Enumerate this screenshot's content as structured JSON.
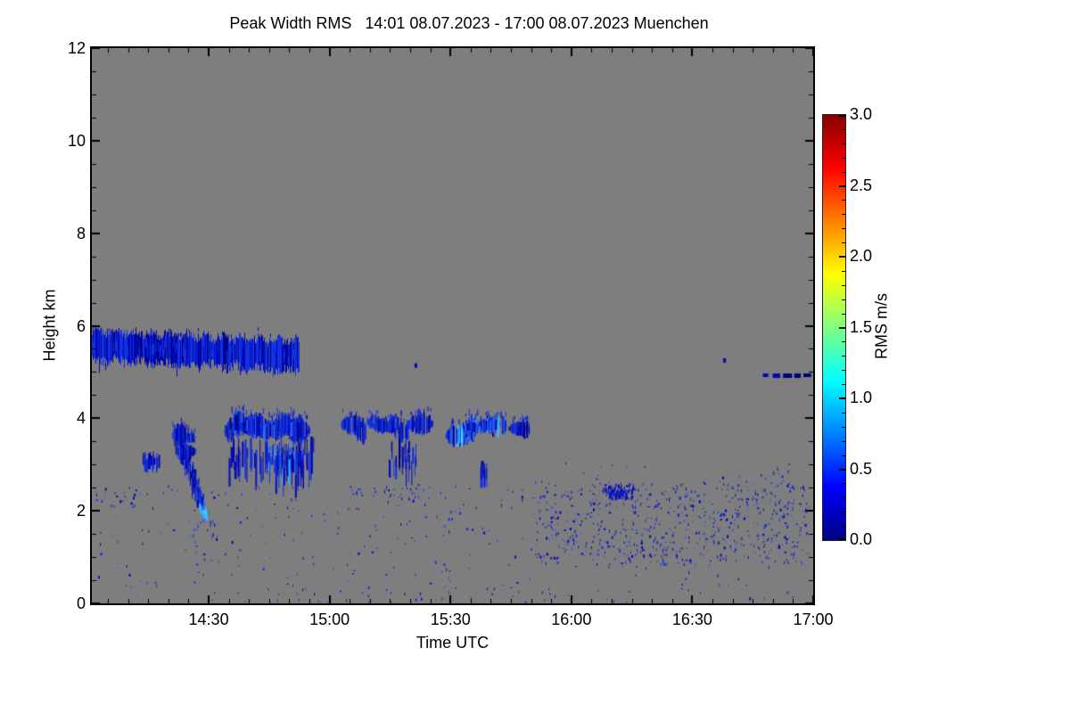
{
  "chart_data": {
    "type": "heatmap",
    "title": "Peak Width RMS   14:01 08.07.2023 - 17:00 08.07.2023 Muenchen",
    "xlabel": "Time UTC",
    "ylabel": "Height km",
    "x_start_label": "14:01",
    "x_end_label": "17:00",
    "x_range_minutes": [
      841,
      1020
    ],
    "x_major_ticks": [
      {
        "minute": 870,
        "label": "14:30"
      },
      {
        "minute": 900,
        "label": "15:00"
      },
      {
        "minute": 930,
        "label": "15:30"
      },
      {
        "minute": 960,
        "label": "16:00"
      },
      {
        "minute": 990,
        "label": "16:30"
      },
      {
        "minute": 1020,
        "label": "17:00"
      }
    ],
    "x_minor_step_minutes": 5,
    "ylim": [
      0,
      12
    ],
    "y_major_ticks": [
      {
        "value": 0,
        "label": "0"
      },
      {
        "value": 2,
        "label": "2"
      },
      {
        "value": 4,
        "label": "4"
      },
      {
        "value": 6,
        "label": "6"
      },
      {
        "value": 8,
        "label": "8"
      },
      {
        "value": 10,
        "label": "10"
      },
      {
        "value": 12,
        "label": "12"
      }
    ],
    "y_minor_step": 0.5,
    "plot_bg": "#7e7e7e",
    "frame_color": "#000000",
    "colorbar": {
      "label": "RMS m/s",
      "min": 0.0,
      "max": 3.0,
      "tick_values": [
        0.0,
        0.5,
        1.0,
        1.5,
        2.0,
        2.5,
        3.0
      ],
      "tick_labels": [
        "0.0",
        "0.5",
        "1.0",
        "1.5",
        "2.0",
        "2.5",
        "3.0"
      ],
      "minor_step": 0.1,
      "gradient": [
        {
          "pos": 0.0,
          "color": "#000083"
        },
        {
          "pos": 0.125,
          "color": "#0000ff"
        },
        {
          "pos": 0.25,
          "color": "#0080ff"
        },
        {
          "pos": 0.375,
          "color": "#00ffff"
        },
        {
          "pos": 0.5,
          "color": "#80ff80"
        },
        {
          "pos": 0.625,
          "color": "#ffff00"
        },
        {
          "pos": 0.75,
          "color": "#ff8000"
        },
        {
          "pos": 0.875,
          "color": "#ff0000"
        },
        {
          "pos": 1.0,
          "color": "#870000"
        }
      ]
    },
    "palette": {
      "darkest": "#00027a",
      "dark": "#0008b6",
      "mid": "#1232e0",
      "light": "#2e66f5",
      "bright": "#38b6ff",
      "cyan": "#40e8ff"
    },
    "features": [
      {
        "type": "ragged_band",
        "t0": 841,
        "t1": 892.5,
        "top0": 5.9,
        "top1": 5.66,
        "bot0": 5.27,
        "bot1": 5.02
      },
      {
        "type": "diag_streak",
        "t0": 861.5,
        "tip_t": 869,
        "t1": 872.5,
        "h_top": 3.85,
        "h_tip": 1.92
      },
      {
        "type": "blob_row",
        "t0": 861.8,
        "t1": 866.5,
        "h": 3.5,
        "amp": 0.3,
        "n": 3,
        "bright": 0.1
      },
      {
        "type": "streaks",
        "t0": 853.5,
        "t1": 857.5,
        "htop": 3.3,
        "hbot": 2.82,
        "density": 1.4,
        "maxlen": 0.45
      },
      {
        "type": "blob_row",
        "t0": 874,
        "t1": 895,
        "h": 3.82,
        "amp": 0.2,
        "n": 9,
        "bright": 0.25
      },
      {
        "type": "streaks",
        "t0": 874.5,
        "t1": 896,
        "htop": 3.62,
        "hbot": 2.2,
        "density": 0.75,
        "maxlen": 0.85
      },
      {
        "type": "streaks",
        "t0": 884.5,
        "t1": 893.5,
        "htop": 3.45,
        "hbot": 2.5,
        "density": 1.8,
        "maxlen": 0.6,
        "bright": 0.3
      },
      {
        "type": "blob_row",
        "t0": 904.5,
        "t1": 924.5,
        "h": 3.78,
        "amp": 0.16,
        "n": 8,
        "bright": 0.2
      },
      {
        "type": "streaks",
        "t0": 914.5,
        "t1": 921.5,
        "htop": 3.55,
        "hbot": 2.3,
        "density": 0.8,
        "maxlen": 0.7
      },
      {
        "type": "blob_row",
        "t0": 931.5,
        "t1": 943.5,
        "h": 3.76,
        "amp": 0.18,
        "n": 5,
        "bright": 0.55
      },
      {
        "type": "blob_row",
        "t0": 945.5,
        "t1": 948.5,
        "h": 3.78,
        "amp": 0.08,
        "n": 2,
        "bright": 0
      },
      {
        "type": "streaks",
        "t0": 937.2,
        "t1": 939.4,
        "htop": 3.12,
        "hbot": 2.5,
        "density": 1.5,
        "maxlen": 0.55
      },
      {
        "type": "dot",
        "t": 921.3,
        "h": 5.15
      },
      {
        "type": "dot",
        "t": 997.9,
        "h": 5.26
      },
      {
        "type": "dash_line",
        "t0": 1007.5,
        "t1": 1019.5,
        "h": 4.93,
        "segments": 6
      },
      {
        "type": "speckle",
        "t0": 842,
        "t1": 951,
        "h0": 0.2,
        "h1": 2.6,
        "count": 200
      },
      {
        "type": "speckle",
        "t0": 842,
        "t1": 854,
        "h0": 2.1,
        "h1": 2.5,
        "count": 24
      },
      {
        "type": "speckle",
        "t0": 865,
        "t1": 869,
        "h0": 1.3,
        "h1": 1.8,
        "count": 10
      },
      {
        "type": "speckle",
        "t0": 905,
        "t1": 925,
        "h0": 2.25,
        "h1": 2.55,
        "count": 38
      },
      {
        "type": "speckle",
        "t0": 951,
        "t1": 1019,
        "h0": 0.85,
        "h1": 2.65,
        "count": 700
      },
      {
        "type": "speckle_dense",
        "t0": 967,
        "t1": 976,
        "h0": 2.25,
        "h1": 2.62,
        "count": 130
      },
      {
        "type": "speckle",
        "t0": 955,
        "t1": 1015,
        "h0": 2.65,
        "h1": 3.05,
        "count": 20
      },
      {
        "type": "speckle",
        "t0": 960,
        "t1": 1010,
        "h0": 0.4,
        "h1": 0.85,
        "count": 16
      },
      {
        "type": "speckle",
        "t0": 870,
        "t1": 1018,
        "h0": 0.03,
        "h1": 0.38,
        "count": 55
      }
    ]
  }
}
